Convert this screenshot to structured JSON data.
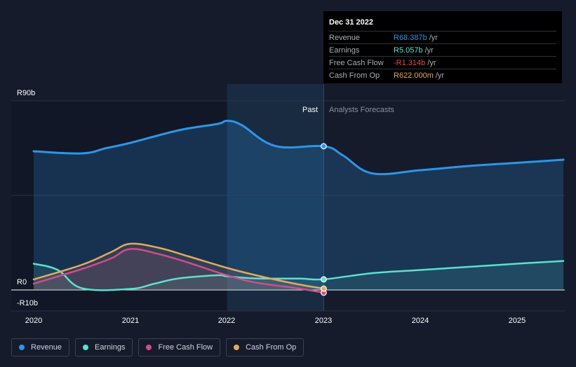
{
  "chart_data": {
    "type": "line",
    "y_axis": {
      "unit_prefix": "R",
      "min": -10,
      "max": 90,
      "tick_labels": [
        "R90b",
        "R0",
        "-R10b"
      ],
      "tick_values": [
        90,
        0,
        -10
      ]
    },
    "x_axis": {
      "min": 2019.9,
      "max": 2025.5,
      "tick_labels": [
        "2020",
        "2021",
        "2022",
        "2023",
        "2024",
        "2025"
      ],
      "tick_values": [
        2020,
        2021,
        2022,
        2023,
        2024,
        2025
      ]
    },
    "divider": {
      "x": 2023.0,
      "past_label": "Past",
      "forecast_label": "Analysts Forecasts"
    },
    "series": [
      {
        "name": "Revenue",
        "color": "#2f95e6",
        "points": [
          [
            2020.0,
            66
          ],
          [
            2020.5,
            65
          ],
          [
            2020.75,
            67.5
          ],
          [
            2021.0,
            70
          ],
          [
            2021.5,
            76
          ],
          [
            2021.9,
            79
          ],
          [
            2022.0,
            80.5
          ],
          [
            2022.15,
            78.5
          ],
          [
            2022.5,
            68.5
          ],
          [
            2023.0,
            68.4
          ],
          [
            2023.2,
            64
          ],
          [
            2023.5,
            55.5
          ],
          [
            2024.0,
            57
          ],
          [
            2024.5,
            59
          ],
          [
            2025.0,
            60.5
          ],
          [
            2025.48,
            62
          ]
        ]
      },
      {
        "name": "Earnings",
        "color": "#5ce0d1",
        "points": [
          [
            2020.0,
            12.5
          ],
          [
            2020.25,
            9.5
          ],
          [
            2020.5,
            0.8
          ],
          [
            2021.0,
            0.5
          ],
          [
            2021.25,
            3
          ],
          [
            2021.5,
            5.5
          ],
          [
            2021.9,
            7
          ],
          [
            2022.0,
            6.5
          ],
          [
            2022.3,
            5.5
          ],
          [
            2022.75,
            5.4
          ],
          [
            2023.0,
            5.057
          ],
          [
            2023.5,
            8
          ],
          [
            2024.0,
            9.5
          ],
          [
            2024.5,
            11
          ],
          [
            2025.0,
            12.5
          ],
          [
            2025.48,
            13.8
          ]
        ]
      },
      {
        "name": "Free Cash Flow",
        "color": "#d14b8f",
        "points": [
          [
            2020.0,
            3
          ],
          [
            2020.5,
            10
          ],
          [
            2020.8,
            15
          ],
          [
            2021.0,
            19.5
          ],
          [
            2021.3,
            17
          ],
          [
            2021.6,
            13
          ],
          [
            2022.0,
            7
          ],
          [
            2022.3,
            3.5
          ],
          [
            2022.7,
            1
          ],
          [
            2023.0,
            -1.314
          ]
        ]
      },
      {
        "name": "Cash From Op",
        "color": "#e4a95f",
        "points": [
          [
            2020.0,
            5
          ],
          [
            2020.5,
            12
          ],
          [
            2020.8,
            18
          ],
          [
            2021.0,
            22
          ],
          [
            2021.3,
            20
          ],
          [
            2021.6,
            16
          ],
          [
            2022.0,
            10.5
          ],
          [
            2022.3,
            7
          ],
          [
            2022.7,
            3
          ],
          [
            2023.0,
            0.622
          ]
        ]
      }
    ],
    "highlight_year": 2023.0
  },
  "tooltip": {
    "date": "Dec 31 2022",
    "rows": [
      {
        "label": "Revenue",
        "value": "R68.387b",
        "unit": "/yr",
        "color": "#2f95e6"
      },
      {
        "label": "Earnings",
        "value": "R5.057b",
        "unit": "/yr",
        "color": "#5ce0d1"
      },
      {
        "label": "Free Cash Flow",
        "value": "-R1.314b",
        "unit": "/yr",
        "color": "#e8484a"
      },
      {
        "label": "Cash From Op",
        "value": "R622.000m",
        "unit": "/yr",
        "color": "#e4a95f"
      }
    ]
  },
  "legend": [
    {
      "label": "Revenue",
      "color": "#2f95e6"
    },
    {
      "label": "Earnings",
      "color": "#5ce0d1"
    },
    {
      "label": "Free Cash Flow",
      "color": "#d14b8f"
    },
    {
      "label": "Cash From Op",
      "color": "#e4a95f"
    }
  ]
}
